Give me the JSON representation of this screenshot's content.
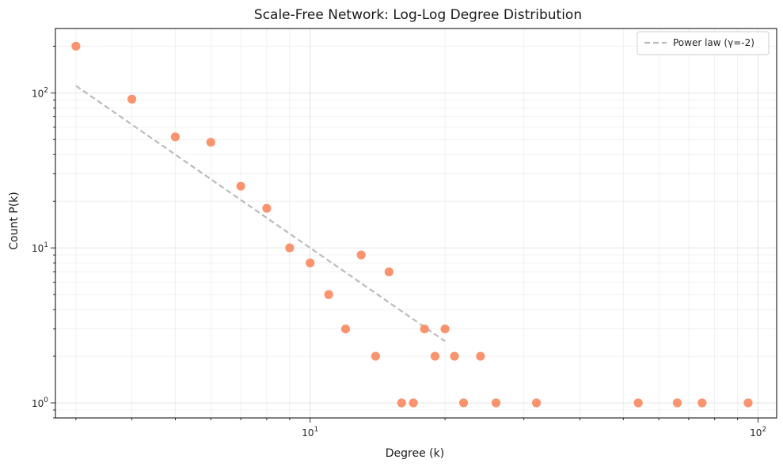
{
  "chart_data": {
    "type": "scatter",
    "title": "Scale-Free Network: Log-Log Degree Distribution",
    "xlabel": "Degree (k)",
    "ylabel": "Count P(k)",
    "xscale": "log",
    "yscale": "log",
    "xlim": [
      2.7,
      110
    ],
    "ylim": [
      0.8,
      260
    ],
    "x_tick_labels": [
      {
        "value": 10,
        "base": "10",
        "exp": "1"
      },
      {
        "value": 100,
        "base": "10",
        "exp": "2"
      }
    ],
    "y_tick_labels": [
      {
        "value": 1,
        "base": "10",
        "exp": "0"
      },
      {
        "value": 10,
        "base": "10",
        "exp": "1"
      },
      {
        "value": 100,
        "base": "10",
        "exp": "2"
      }
    ],
    "grid": true,
    "legend": {
      "position": "top-right",
      "entries": [
        "Power law (γ=-2)"
      ]
    },
    "series": [
      {
        "kind": "points",
        "color": "#fa8b62",
        "points": [
          [
            3,
            200
          ],
          [
            4,
            91
          ],
          [
            5,
            52
          ],
          [
            6,
            48
          ],
          [
            7,
            25
          ],
          [
            8,
            18
          ],
          [
            9,
            10
          ],
          [
            10,
            8
          ],
          [
            11,
            5
          ],
          [
            12,
            3
          ],
          [
            13,
            9
          ],
          [
            14,
            2
          ],
          [
            15,
            7
          ],
          [
            16,
            1
          ],
          [
            17,
            1
          ],
          [
            18,
            3
          ],
          [
            19,
            2
          ],
          [
            20,
            3
          ],
          [
            21,
            2
          ],
          [
            22,
            1
          ],
          [
            24,
            2
          ],
          [
            26,
            1
          ],
          [
            32,
            1
          ],
          [
            54,
            1
          ],
          [
            66,
            1
          ],
          [
            75,
            1
          ],
          [
            95,
            1
          ]
        ]
      },
      {
        "kind": "line",
        "name": "Power law (γ=-2)",
        "color": "#bbbbbb",
        "style": "dashed",
        "points": [
          [
            3,
            111
          ],
          [
            20,
            2.5
          ]
        ]
      }
    ]
  }
}
